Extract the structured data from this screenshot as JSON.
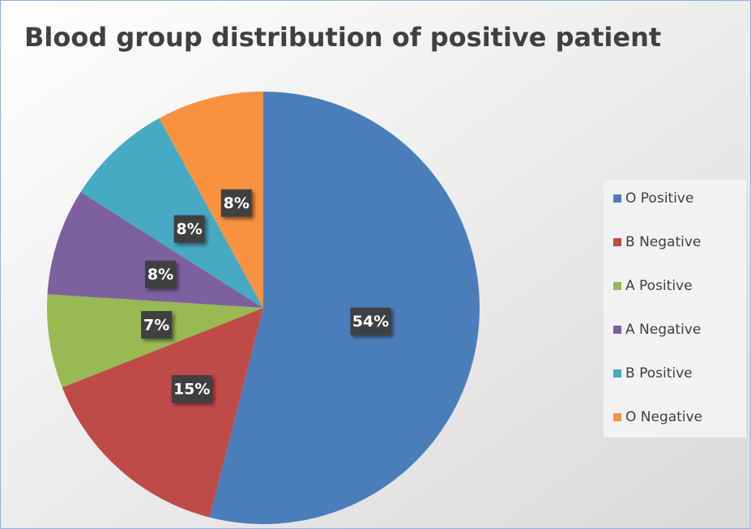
{
  "chart_data": {
    "type": "pie",
    "title": "Blood group distribution of positive patient",
    "categories": [
      "O Positive",
      "B Negative",
      "A Positive",
      "A Negative",
      "B Positive",
      "O Negative"
    ],
    "values": [
      54,
      15,
      7,
      8,
      8,
      8
    ],
    "value_labels": [
      "54%",
      "15%",
      "7%",
      "8%",
      "8%",
      "8%"
    ],
    "colors": [
      "#4a7ebb",
      "#be4b48",
      "#98b954",
      "#7d60a0",
      "#46aac5",
      "#f69240"
    ],
    "legend": "right"
  }
}
